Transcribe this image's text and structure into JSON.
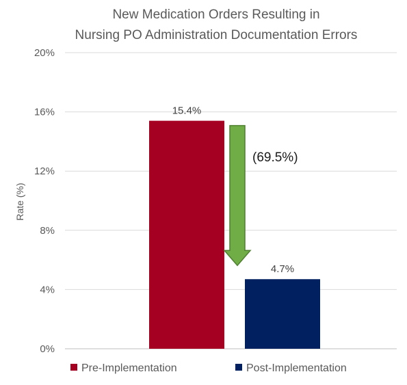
{
  "chart_data": {
    "type": "bar",
    "title_lines": [
      "New Medication Orders Resulting in",
      "Nursing PO Administration Documentation Errors"
    ],
    "xlabel": "",
    "ylabel": "Rate (%)",
    "ylim": [
      0,
      20
    ],
    "y_ticks": [
      "0%",
      "4%",
      "8%",
      "12%",
      "16%",
      "20%"
    ],
    "y_tick_values": [
      0,
      4,
      8,
      12,
      16,
      20
    ],
    "categories": [
      "Pre-Implementation",
      "Post-Implementation"
    ],
    "values": [
      15.4,
      4.7
    ],
    "data_labels": [
      "15.4%",
      "4.7%"
    ],
    "colors": [
      "#A50021",
      "#002060"
    ],
    "grid": true,
    "legend": {
      "position": "bottom",
      "entries": [
        "Pre-Implementation",
        "Post-Implementation"
      ]
    },
    "annotation": {
      "text": "(69.5%)",
      "arrow_color": "#70AD47",
      "arrow_direction": "down"
    }
  }
}
